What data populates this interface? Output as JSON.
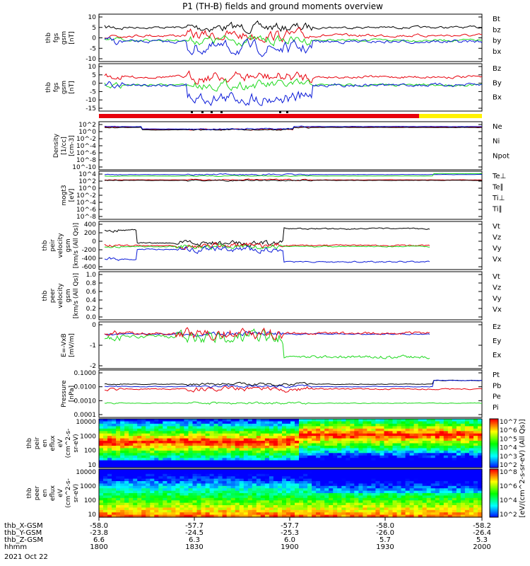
{
  "title": "P1 (TH-B) fields and ground moments overview",
  "colors": {
    "black": "#000000",
    "red": "#e8000b",
    "green": "#1ed91e",
    "blue": "#0a1ad8",
    "yellow": "#fff200"
  },
  "chart_data": [
    {
      "id": "fgs_gsm",
      "type": "line",
      "ylabel": [
        "thb",
        "fgs",
        "gsm",
        "[nT]"
      ],
      "ylim": [
        -10,
        10
      ],
      "yticks": [
        "10",
        "5",
        "0",
        "-5",
        "-10"
      ],
      "series": [
        {
          "name": "Bt",
          "color": "black"
        },
        {
          "name": "bz",
          "color": "red"
        },
        {
          "name": "by",
          "color": "green"
        },
        {
          "name": "bx",
          "color": "blue"
        }
      ]
    },
    {
      "id": "fgs_gsm2",
      "type": "line",
      "ylabel": [
        "thb",
        "fgs",
        "gsm",
        "[nT]"
      ],
      "ylim": [
        -17,
        10
      ],
      "yticks": [
        "10",
        "5",
        "0",
        "-5",
        "-10",
        "-15"
      ],
      "series": [
        {
          "name": "Bz",
          "color": "red"
        },
        {
          "name": "By",
          "color": "green"
        },
        {
          "name": "Bx",
          "color": "blue"
        }
      ]
    },
    {
      "id": "density",
      "type": "line",
      "ylabel": [
        "Density",
        "[1/cc]",
        "[cm-3]"
      ],
      "scale": "log",
      "yticks": [
        "10^2",
        "10^0",
        "10^-2",
        "10^-4",
        "10^-6",
        "10^-8",
        "10^-10"
      ],
      "series": [
        {
          "name": "Ne",
          "color": "red"
        },
        {
          "name": "Ni",
          "color": "black"
        },
        {
          "name": "Npot",
          "color": "blue"
        }
      ]
    },
    {
      "id": "temp",
      "type": "line",
      "ylabel": [
        "mogt3",
        "[eV]"
      ],
      "scale": "log",
      "yticks": [
        "10^4",
        "10^2",
        "10^0",
        "10^-2",
        "10^-4",
        "10^-6",
        "10^-8"
      ],
      "series": [
        {
          "name": "Te⊥",
          "color": "red"
        },
        {
          "name": "Te∥",
          "color": "black"
        },
        {
          "name": "Ti⊥",
          "color": "blue"
        },
        {
          "name": "Ti∥",
          "color": "green"
        }
      ]
    },
    {
      "id": "peir_vel",
      "type": "line",
      "ylabel": [
        "thb",
        "peir",
        "velocity",
        "gsm",
        "[km/s (All Qs)]"
      ],
      "ylim": [
        -600,
        500
      ],
      "yticks": [
        "400",
        "200",
        "0",
        "-200",
        "-400",
        "-600"
      ],
      "series": [
        {
          "name": "Vt",
          "color": "black"
        },
        {
          "name": "Vz",
          "color": "red"
        },
        {
          "name": "Vy",
          "color": "green"
        },
        {
          "name": "Vx",
          "color": "blue"
        }
      ]
    },
    {
      "id": "peer_vel",
      "type": "line",
      "ylabel": [
        "thb",
        "peer",
        "velocity",
        "gsm",
        "[km/s (All Qs)]"
      ],
      "ylim": [
        0,
        1.05
      ],
      "yticks": [
        "1.0",
        "0.8",
        "0.6",
        "0.4",
        "0.2",
        "0.0"
      ],
      "series": [
        {
          "name": "Vt",
          "color": "black"
        },
        {
          "name": "Vz",
          "color": "red"
        },
        {
          "name": "Vy",
          "color": "green"
        },
        {
          "name": "Vx",
          "color": "blue"
        }
      ]
    },
    {
      "id": "efield",
      "type": "line",
      "ylabel": [
        "E=-VxB",
        "[mV/m]"
      ],
      "ylim": [
        -2.8,
        1
      ],
      "yticks": [
        "0",
        "-1",
        "-2"
      ],
      "series": [
        {
          "name": "Ez",
          "color": "red"
        },
        {
          "name": "Ey",
          "color": "green"
        },
        {
          "name": "Ex",
          "color": "blue"
        }
      ]
    },
    {
      "id": "pressure",
      "type": "line",
      "ylabel": [
        "Pressure",
        "[nPa]"
      ],
      "scale": "log",
      "yticks": [
        "0.1000",
        "0.0100",
        "0.0010",
        "0.0001"
      ],
      "series": [
        {
          "name": "Pt",
          "color": "black"
        },
        {
          "name": "Pb",
          "color": "red"
        },
        {
          "name": "Pe",
          "color": "green"
        },
        {
          "name": "Pi",
          "color": "blue"
        }
      ]
    },
    {
      "id": "peir_spec",
      "type": "heatmap",
      "ylabel": [
        "thb",
        "peir",
        "en",
        "eflux",
        "eV",
        "(cm^2-s-",
        "sr-eV)"
      ],
      "yticks": [
        "10000",
        "1000",
        "100",
        "10"
      ]
    },
    {
      "id": "peer_spec",
      "type": "heatmap",
      "ylabel": [
        "thb",
        "peer",
        "en",
        "eflux",
        "eV",
        "(cm^2-s-",
        "sr-eV)"
      ],
      "yticks": [
        "10000",
        "1000",
        "100",
        "10"
      ]
    }
  ],
  "colorbar": {
    "label": "[eV/(cm^2-s-sr-eV) (All Qs)]",
    "ticks_ion": [
      "10^7",
      "10^6",
      "10^5",
      "10^4",
      "10^3",
      "10^2"
    ],
    "ticks_el": [
      "10^8",
      "10^6",
      "10^4",
      "10^2"
    ]
  },
  "xaxis": {
    "rows": [
      {
        "label": "thb_X-GSM",
        "values": [
          "-58.0",
          "-57.7",
          "-57.7",
          "-58.0",
          "-58.2"
        ]
      },
      {
        "label": "thb_Y-GSM",
        "values": [
          "-23.8",
          "-24.5",
          "-25.3",
          "-26.0",
          "-26.4"
        ]
      },
      {
        "label": "thb_Z-GSM",
        "values": [
          "6.6",
          "6.3",
          "6.0",
          "5.7",
          "5.3"
        ]
      },
      {
        "label": "hhmm",
        "values": [
          "1800",
          "1830",
          "1900",
          "1930",
          "2000"
        ]
      }
    ],
    "date": "2021 Oct 22"
  }
}
